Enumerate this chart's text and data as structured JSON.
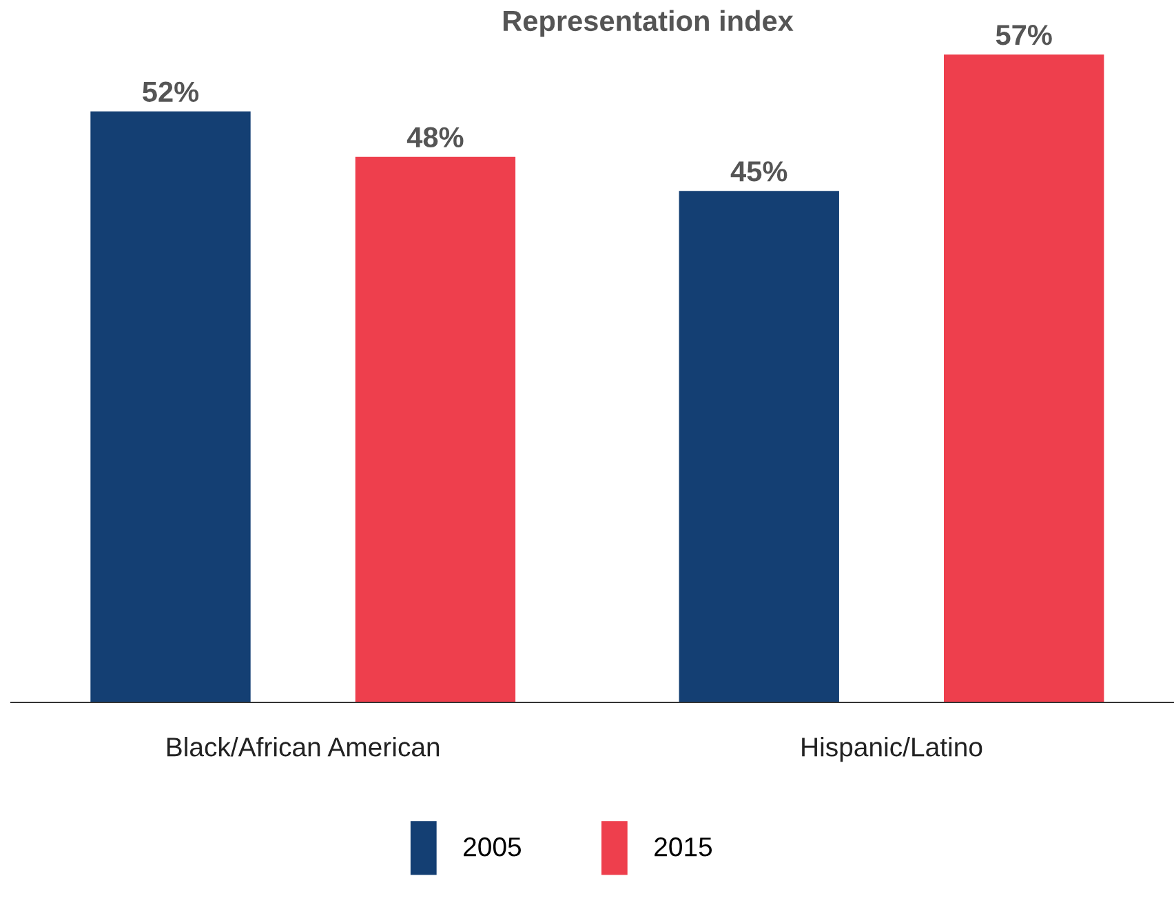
{
  "chart_data": {
    "type": "bar",
    "title": "Representation index",
    "categories": [
      "Black/African American",
      "Hispanic/Latino"
    ],
    "series": [
      {
        "name": "2005",
        "color": "#143f73",
        "values": [
          52,
          45
        ],
        "value_labels": [
          "52%",
          "45%"
        ]
      },
      {
        "name": "2015",
        "color": "#ee3f4d",
        "values": [
          48,
          57
        ],
        "value_labels": [
          "48%",
          "57%"
        ]
      }
    ],
    "legend": "bottom",
    "grid": false
  }
}
